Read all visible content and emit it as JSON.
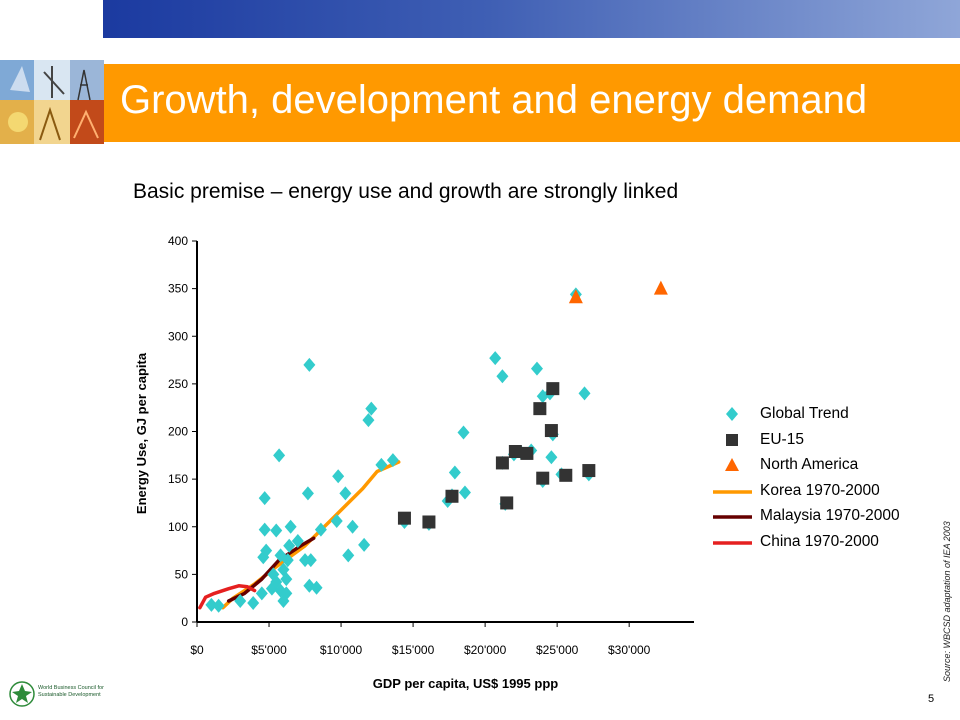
{
  "slide": {
    "title": "Growth, development and energy demand",
    "subtitle": "Basic premise – energy use and growth are strongly linked",
    "source_note": "Source: WBCSD adaptation of IEA 2003",
    "page_number": "5",
    "logo_text": "World Business Council for Sustainable Development",
    "colors": {
      "title_bar": "#ff9900",
      "top_band": "#1b3aa0",
      "title_text": "#ffffff"
    }
  },
  "legend": {
    "items": [
      {
        "label": "Global Trend",
        "symbol": "diamond",
        "color": "#33cccc"
      },
      {
        "label": "EU-15",
        "symbol": "square",
        "color": "#333333"
      },
      {
        "label": "North America",
        "symbol": "triangle",
        "color": "#ff6600"
      },
      {
        "label": "Korea 1970-2000",
        "symbol": "line",
        "color": "#ff9900"
      },
      {
        "label": "Malaysia 1970-2000",
        "symbol": "line",
        "color": "#660000"
      },
      {
        "label": "China 1970-2000",
        "symbol": "line",
        "color": "#e52020"
      }
    ]
  },
  "chart_data": {
    "type": "scatter",
    "title": "",
    "xlabel": "GDP per capita, US$ 1995 ppp",
    "ylabel": "Energy  Use, GJ per capita",
    "xlim": [
      0,
      34500
    ],
    "ylim": [
      0,
      400
    ],
    "x_ticks": [
      0,
      5000,
      10000,
      15000,
      20000,
      25000,
      30000
    ],
    "x_tick_labels": [
      "$0",
      "$5'000",
      "$10'000",
      "$15'000",
      "$20'000",
      "$25'000",
      "$30'000"
    ],
    "y_ticks": [
      0,
      50,
      100,
      150,
      200,
      250,
      300,
      350,
      400
    ],
    "y_tick_labels": [
      "0",
      "50",
      "100",
      "150",
      "200",
      "250",
      "300",
      "350",
      "400"
    ],
    "grid": false,
    "legend_position": "right",
    "series": [
      {
        "name": "Global Trend",
        "kind": "points",
        "marker": "diamond",
        "color": "#33cccc",
        "points": [
          [
            1000,
            18
          ],
          [
            1500,
            17
          ],
          [
            3000,
            22
          ],
          [
            3900,
            20
          ],
          [
            4500,
            30
          ],
          [
            4600,
            68
          ],
          [
            4700,
            97
          ],
          [
            4700,
            130
          ],
          [
            4800,
            75
          ],
          [
            5200,
            35
          ],
          [
            5300,
            50
          ],
          [
            5500,
            42
          ],
          [
            5500,
            96
          ],
          [
            5700,
            175
          ],
          [
            5800,
            70
          ],
          [
            5800,
            33
          ],
          [
            6000,
            55
          ],
          [
            6000,
            22
          ],
          [
            6200,
            45
          ],
          [
            6200,
            30
          ],
          [
            6300,
            65
          ],
          [
            6400,
            80
          ],
          [
            6500,
            100
          ],
          [
            7000,
            85
          ],
          [
            7500,
            65
          ],
          [
            7700,
            135
          ],
          [
            7800,
            38
          ],
          [
            7800,
            270
          ],
          [
            7900,
            65
          ],
          [
            8300,
            36
          ],
          [
            8600,
            97
          ],
          [
            9700,
            106
          ],
          [
            9800,
            153
          ],
          [
            10300,
            135
          ],
          [
            10500,
            70
          ],
          [
            10800,
            100
          ],
          [
            11600,
            81
          ],
          [
            11900,
            212
          ],
          [
            12100,
            224
          ],
          [
            12800,
            165
          ],
          [
            13600,
            170
          ],
          [
            14400,
            105
          ],
          [
            16100,
            103
          ],
          [
            17400,
            127
          ],
          [
            17700,
            133
          ],
          [
            17900,
            157
          ],
          [
            18500,
            199
          ],
          [
            18600,
            136
          ],
          [
            20700,
            277
          ],
          [
            21200,
            258
          ],
          [
            21200,
            167
          ],
          [
            21400,
            124
          ],
          [
            22000,
            176
          ],
          [
            22500,
            178
          ],
          [
            23200,
            180
          ],
          [
            23600,
            266
          ],
          [
            24000,
            148
          ],
          [
            24000,
            237
          ],
          [
            24500,
            240
          ],
          [
            24600,
            173
          ],
          [
            24700,
            197
          ],
          [
            25300,
            155
          ],
          [
            26300,
            344
          ],
          [
            26900,
            240
          ],
          [
            27200,
            155
          ]
        ]
      },
      {
        "name": "EU-15",
        "kind": "points",
        "marker": "square",
        "color": "#333333",
        "points": [
          [
            14400,
            109
          ],
          [
            16100,
            105
          ],
          [
            17700,
            132
          ],
          [
            21200,
            167
          ],
          [
            21500,
            125
          ],
          [
            22100,
            179
          ],
          [
            22900,
            177
          ],
          [
            23800,
            224
          ],
          [
            24000,
            151
          ],
          [
            24600,
            201
          ],
          [
            24700,
            245
          ],
          [
            25600,
            154
          ],
          [
            27200,
            159
          ]
        ]
      },
      {
        "name": "North America",
        "kind": "points",
        "marker": "triangle",
        "color": "#ff6600",
        "points": [
          [
            26300,
            341
          ],
          [
            32200,
            350
          ]
        ]
      },
      {
        "name": "Korea 1970-2000",
        "kind": "line",
        "color": "#ff9900",
        "points": [
          [
            1800,
            15
          ],
          [
            2500,
            25
          ],
          [
            4000,
            40
          ],
          [
            5500,
            58
          ],
          [
            7500,
            80
          ],
          [
            9500,
            110
          ],
          [
            11500,
            140
          ],
          [
            12500,
            158
          ],
          [
            14000,
            168
          ]
        ]
      },
      {
        "name": "Malaysia 1970-2000",
        "kind": "line",
        "color": "#660000",
        "points": [
          [
            2200,
            22
          ],
          [
            3300,
            30
          ],
          [
            4500,
            45
          ],
          [
            5700,
            65
          ],
          [
            7200,
            80
          ],
          [
            8100,
            88
          ]
        ]
      },
      {
        "name": "China 1970-2000",
        "kind": "line",
        "color": "#e52020",
        "points": [
          [
            200,
            15
          ],
          [
            600,
            26
          ],
          [
            1200,
            30
          ],
          [
            2200,
            35
          ],
          [
            2900,
            38
          ],
          [
            3500,
            37
          ],
          [
            4000,
            33
          ]
        ]
      }
    ]
  }
}
